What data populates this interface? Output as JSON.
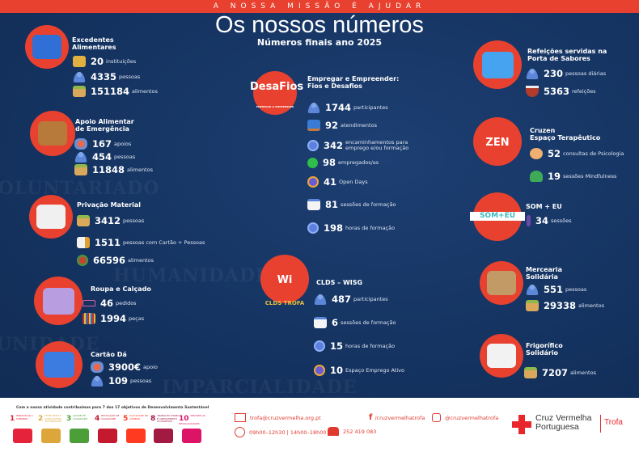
{
  "header": {
    "tagline": "A NOSSA MISSÃO É AJUDAR",
    "title": "Os nossos números",
    "subtitle": "Números finais ano 2025"
  },
  "watermarks": [
    "IMPARCIALIDADE",
    "HUMANIDADE",
    "VOLUNTARIADO",
    "UNIDADE"
  ],
  "colors": {
    "background": "#153462",
    "accent": "#e8412f",
    "text": "#ffffff"
  },
  "sections": {
    "excedentes": {
      "title": "Excedentes\nAlimentares",
      "stats": [
        {
          "icon": "building-icon",
          "value": "20",
          "label": "instituições"
        },
        {
          "icon": "people-icon",
          "value": "4335",
          "label": "pessoas"
        },
        {
          "icon": "food-box-icon",
          "value": "151184",
          "label": "alimentos"
        }
      ]
    },
    "apoio": {
      "title": "Apoio Alimentar\nde Emergência",
      "stats": [
        {
          "icon": "heart-hand-icon",
          "value": "167",
          "label": "apoios"
        },
        {
          "icon": "people-icon",
          "value": "454",
          "label": "pessoas"
        },
        {
          "icon": "food-box-icon",
          "value": "11848",
          "label": "alimentos"
        }
      ]
    },
    "privacao": {
      "title": "Privação Material",
      "stats": [
        {
          "icon": "food-box-icon",
          "value": "3412",
          "label": "pessoas"
        },
        {
          "icon": "card-icon",
          "value": "1511",
          "label": "pessoas com Cartão + Pessoas"
        },
        {
          "icon": "vegetables-icon",
          "value": "66596",
          "label": "alimentos"
        }
      ]
    },
    "roupa": {
      "title": "Roupa e Calçado",
      "stats": [
        {
          "icon": "hanger-icon",
          "value": "46",
          "label": "pedidos"
        },
        {
          "icon": "clothes-rack-icon",
          "value": "1994",
          "label": "peças"
        }
      ]
    },
    "cartao": {
      "title": "Cartão Dá",
      "stats": [
        {
          "icon": "heart-hand-icon",
          "value": "3900€",
          "label": "apoio"
        },
        {
          "icon": "people-icon",
          "value": "109",
          "label": "pessoas"
        }
      ]
    },
    "desafios": {
      "logo": "DesaFios",
      "logo_sub": "EMPREGAR & EMPREENDER",
      "title": "Empregar e Empreender:\nFios e Desafios",
      "stats": [
        {
          "icon": "people-icon",
          "value": "1744",
          "label": "participantes"
        },
        {
          "icon": "computer-icon",
          "value": "92",
          "label": "atendimentos"
        },
        {
          "icon": "briefcase-clock-icon",
          "value": "342",
          "label": "encaminhamentos para\nemprego e/ou formação"
        },
        {
          "icon": "check-icon",
          "value": "98",
          "label": "empregados/as"
        },
        {
          "icon": "headset-icon",
          "value": "41",
          "label": "Open Days"
        },
        {
          "icon": "whiteboard-icon",
          "value": "81",
          "label": "sessões de formação"
        },
        {
          "icon": "stopwatch-icon",
          "value": "198",
          "label": "horas de formação"
        }
      ]
    },
    "clds": {
      "logo": "Wi",
      "logo_sub": "CLDS TROFA",
      "title": "CLDS – WISG",
      "stats": [
        {
          "icon": "people-icon",
          "value": "487",
          "label": "participantes"
        },
        {
          "icon": "whiteboard-icon",
          "value": "6",
          "label": "sessões de formação"
        },
        {
          "icon": "stopwatch-icon",
          "value": "15",
          "label": "horas de formação"
        },
        {
          "icon": "headset-icon",
          "value": "10",
          "label": "Espaço Emprego Ativo"
        }
      ]
    },
    "refeicoes": {
      "title": "Refeições servidas na\nPorta de Sabores",
      "stats": [
        {
          "icon": "people-icon",
          "value": "230",
          "label": "pessoas diárias"
        },
        {
          "icon": "soup-bowl-icon",
          "value": "5363",
          "label": "refeições"
        }
      ]
    },
    "cruzen": {
      "logo": "ZEN",
      "title": "Cruzen\nEspaço Terapêutico",
      "stats": [
        {
          "icon": "brain-hands-icon",
          "value": "52",
          "label": "consultas de Psicologia"
        },
        {
          "icon": "meditation-icon",
          "value": "19",
          "label": "sessões Mindfulness"
        }
      ]
    },
    "som": {
      "logo": "SOM+EU",
      "title": "SOM + EU",
      "stats": [
        {
          "icon": "microphone-icon",
          "value": "34",
          "label": "sessões"
        }
      ]
    },
    "mercearia": {
      "title": "Mercearia\nSolidária",
      "stats": [
        {
          "icon": "people-icon",
          "value": "551",
          "label": "pessoas"
        },
        {
          "icon": "food-box-icon",
          "value": "29338",
          "label": "alimentos"
        }
      ]
    },
    "frigorifico": {
      "title": "Frigorífico\nSolidário",
      "stats": [
        {
          "icon": "food-box-icon",
          "value": "7207",
          "label": "alimentos"
        }
      ]
    }
  },
  "footer": {
    "sdg_caption": "Com a nossa atividade contribuímos para 7 dos 17 objetivos de Desenvolvimento Sustentável",
    "sdgs": [
      {
        "n": "1",
        "t": "ERRADICAR A POBREZA",
        "color": "#e5243b"
      },
      {
        "n": "2",
        "t": "FOME ZERO E AGRICULTURA SUSTENTÁVEL",
        "color": "#dda63a"
      },
      {
        "n": "3",
        "t": "SAÚDE DE QUALIDADE",
        "color": "#4c9f38"
      },
      {
        "n": "4",
        "t": "EDUCAÇÃO DE QUALIDADE",
        "color": "#c5192d"
      },
      {
        "n": "5",
        "t": "IGUALDADE DE GÉNERO",
        "color": "#ff3a21"
      },
      {
        "n": "8",
        "t": "TRABALHO DIGNO E CRESCIMENTO ECONÓMICO",
        "color": "#a21942"
      },
      {
        "n": "10",
        "t": "REDUZIR AS DESIGUALDADES",
        "color": "#dd1367"
      }
    ],
    "email": "trofa@cruzvermelha.org.pt",
    "hours": "09h00–12h30 | 14h00–18h00",
    "phone": "252 419 083",
    "facebook": "/cruzvermelhatrofa",
    "instagram": "@cruzvermelhatrofa",
    "logo_name": "Cruz Vermelha\nPortuguesa",
    "logo_branch": "Trofa"
  }
}
